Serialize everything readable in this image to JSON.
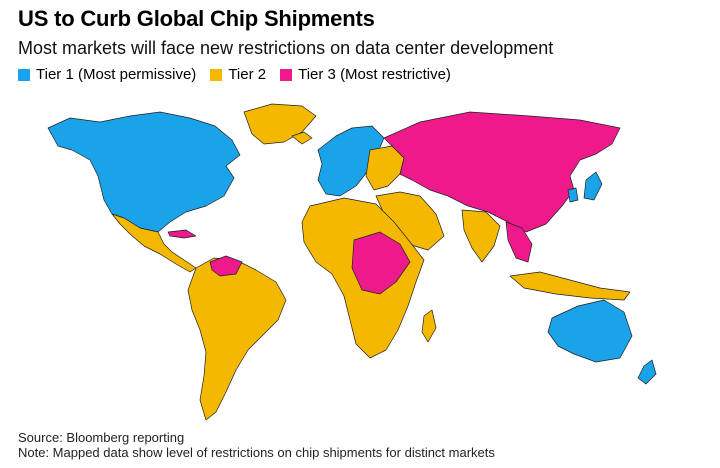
{
  "title": "US to Curb Global Chip Shipments",
  "subtitle": "Most markets will face new restrictions on data center development",
  "legend": [
    {
      "label": "Tier 1 (Most permissive)",
      "color": "#1aa3e8"
    },
    {
      "label": "Tier 2",
      "color": "#f5b800"
    },
    {
      "label": "Tier 3 (Most restrictive)",
      "color": "#ee1a8c"
    }
  ],
  "colors": {
    "tier1": "#1aa3e8",
    "tier2": "#f5b800",
    "tier3": "#ee1a8c",
    "border": "#1f1f1f"
  },
  "source": "Source: Bloomberg reporting",
  "note": "Note: Mapped data show level of restrictions on chip shipments for distinct markets"
}
